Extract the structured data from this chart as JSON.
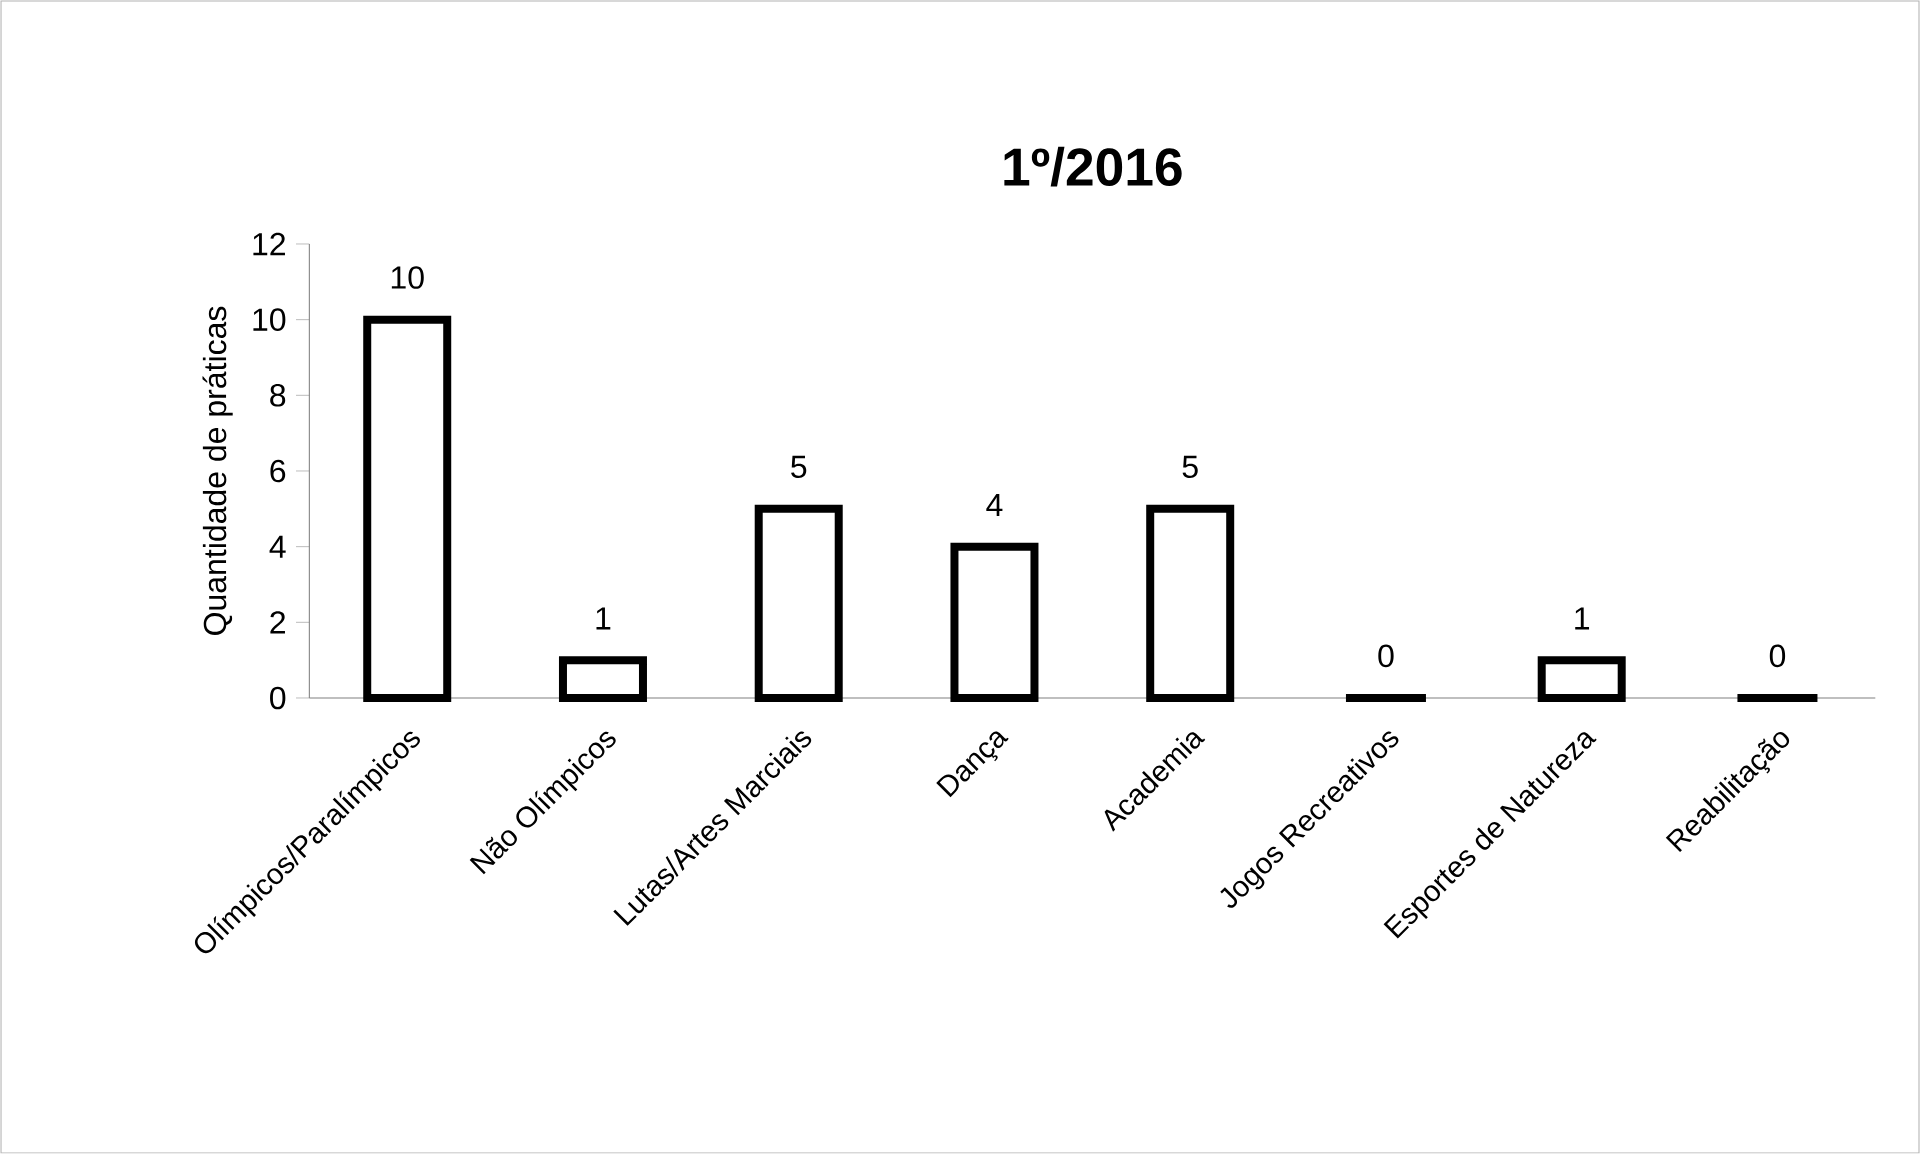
{
  "chart_data": {
    "type": "bar",
    "title": "1º/2016",
    "ylabel": "Quantidade de práticas",
    "categories": [
      "Olímpicos/Paralímpicos",
      "Não Olímpicos",
      "Lutas/Artes Marciais",
      "Dança",
      "Academia",
      "Jogos Recreativos",
      "Esportes de Natureza",
      "Reabilitação"
    ],
    "values": [
      10,
      1,
      5,
      4,
      5,
      0,
      1,
      0
    ],
    "ylim": [
      0,
      12
    ],
    "yticks": [
      0,
      2,
      4,
      6,
      8,
      10,
      12
    ],
    "data_labels": true
  }
}
